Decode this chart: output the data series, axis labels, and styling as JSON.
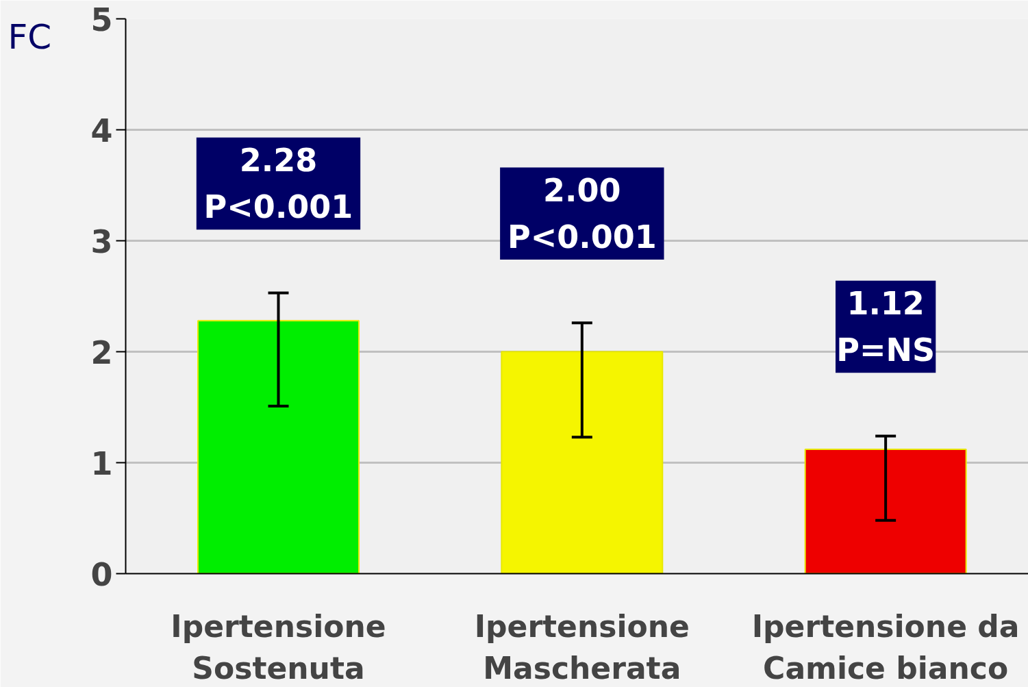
{
  "chart_data": {
    "type": "bar",
    "ylabel": "FC",
    "categories": [
      "Ipertensione\nSostenuta",
      "Ipertensione\nMascherata",
      "Ipertensione da\nCamice bianco"
    ],
    "values": [
      2.28,
      2.0,
      1.12
    ],
    "colors": [
      "#00ee00",
      "#f5f500",
      "#ee0000"
    ],
    "errors": [
      [
        1.51,
        2.53
      ],
      [
        1.23,
        2.26
      ],
      [
        0.48,
        1.24
      ]
    ],
    "value_labels": [
      "2.28\nP<0.001",
      "2.00\nP<0.001",
      "1.12\nP=NS"
    ],
    "ylim": [
      0,
      5
    ],
    "yticks": [
      0,
      1,
      2,
      3,
      4,
      5
    ],
    "grid": "y"
  }
}
